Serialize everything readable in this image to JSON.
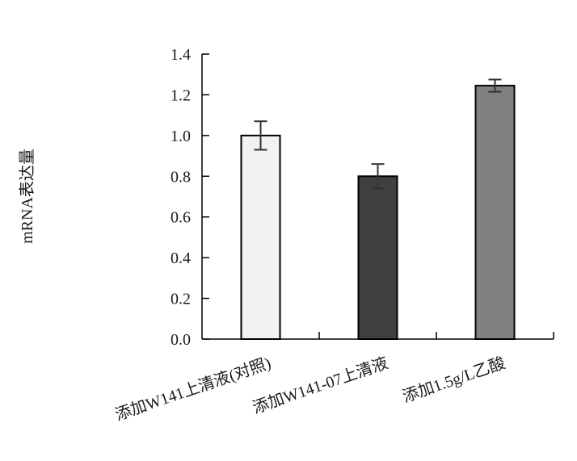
{
  "chart_data": {
    "type": "bar",
    "title": "",
    "xlabel": "",
    "ylabel": "mRNA表达量",
    "ylim": [
      0,
      1.4
    ],
    "yticks": [
      "0.0",
      "0.2",
      "0.4",
      "0.6",
      "0.8",
      "1.0",
      "1.2",
      "1.4"
    ],
    "categories": [
      "添加W141上清液(对照)",
      "添加W141-07上清液",
      "添加1.5g/L乙酸"
    ],
    "values": [
      1.0,
      0.8,
      1.245
    ],
    "errors": [
      0.07,
      0.06,
      0.03
    ],
    "bar_colors": [
      "#f2f2f2",
      "#404040",
      "#808080"
    ],
    "grid": false,
    "legend": "none"
  }
}
